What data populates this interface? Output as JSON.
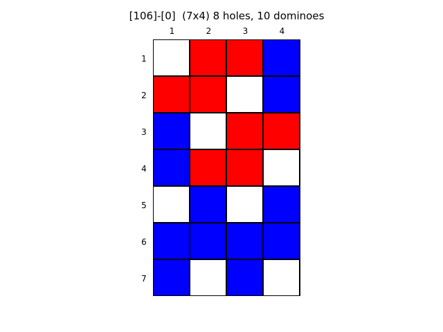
{
  "title": "[106]-[0]  (7x4) 8 holes, 10 dominoes",
  "columns": [
    "1",
    "2",
    "3",
    "4"
  ],
  "rows": [
    "1",
    "2",
    "3",
    "4",
    "5",
    "6",
    "7"
  ],
  "colors": {
    "R": "#ff0000",
    "B": "#0000ff",
    "W": "#ffffff"
  },
  "grid": [
    [
      "W",
      "R",
      "R",
      "B"
    ],
    [
      "R",
      "R",
      "W",
      "B"
    ],
    [
      "B",
      "W",
      "R",
      "R"
    ],
    [
      "B",
      "R",
      "R",
      "W"
    ],
    [
      "W",
      "B",
      "W",
      "B"
    ],
    [
      "B",
      "B",
      "B",
      "B"
    ],
    [
      "B",
      "W",
      "B",
      "W"
    ]
  ]
}
